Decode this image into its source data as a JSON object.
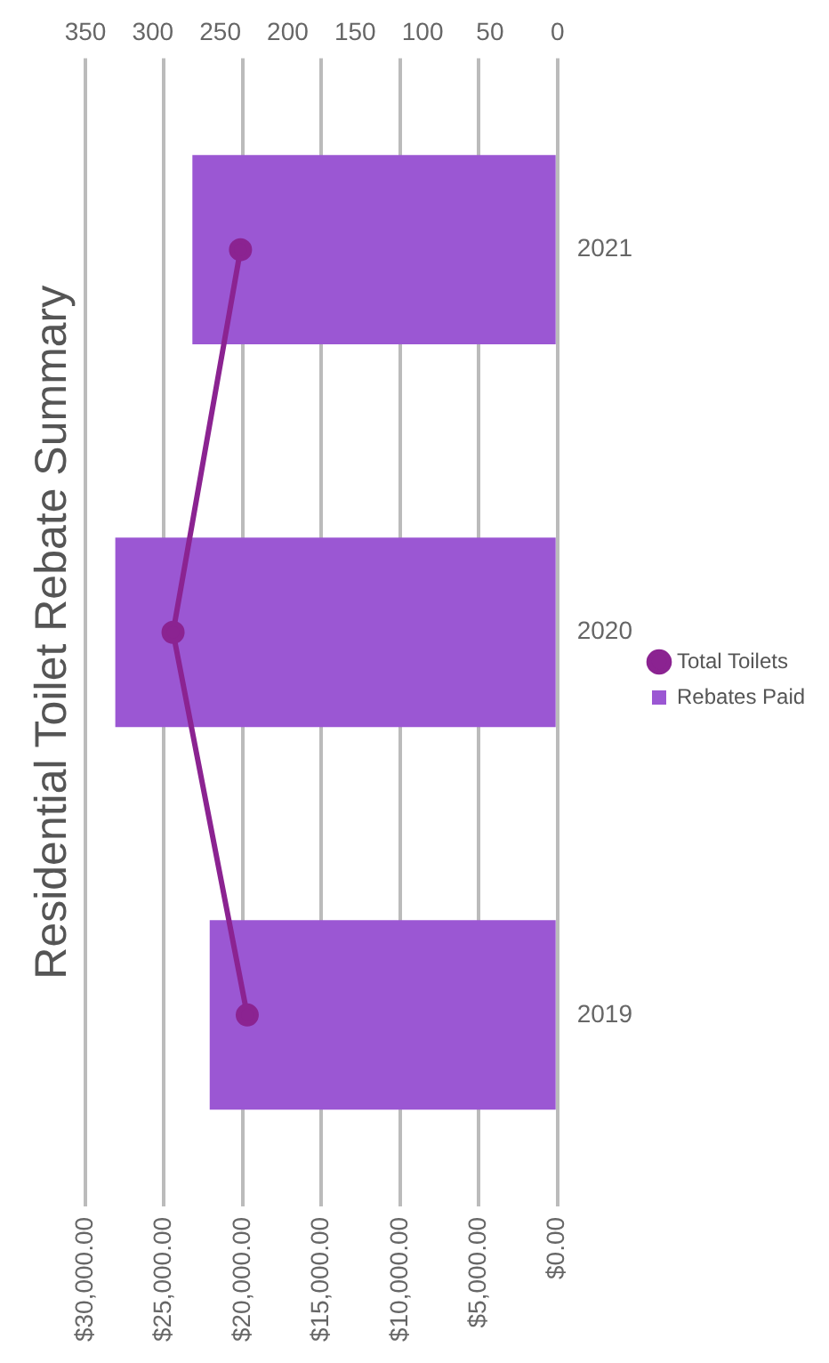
{
  "chart_data": {
    "type": "bar",
    "orientation": "horizontal",
    "title": "Residential Toilet Rebate Summary",
    "categories": [
      "2021",
      "2020",
      "2019"
    ],
    "series": [
      {
        "name": "Rebates Paid",
        "color": "#9b57d3",
        "values": [
          23200,
          28100,
          22100
        ]
      },
      {
        "name": "Total Toilets",
        "type": "line",
        "axis": "x2",
        "color": "#8b2391",
        "values": [
          235,
          285,
          230
        ]
      }
    ],
    "xlim": [
      30000,
      0
    ],
    "xticks": [
      {
        "value": 30000,
        "label": "$30,000.00"
      },
      {
        "value": 25000,
        "label": "$25,000.00"
      },
      {
        "value": 20000,
        "label": "$20,000.00"
      },
      {
        "value": 15000,
        "label": "$15,000.00"
      },
      {
        "value": 10000,
        "label": "$10,000.00"
      },
      {
        "value": 5000,
        "label": "$5,000.00"
      },
      {
        "value": 0,
        "label": "$0.00"
      }
    ],
    "x2lim": [
      350,
      0
    ],
    "x2ticks": [
      350,
      300,
      250,
      200,
      150,
      100,
      50,
      0
    ],
    "grid": "x",
    "legend": "right",
    "marker": "circle",
    "line_style": "solid"
  }
}
